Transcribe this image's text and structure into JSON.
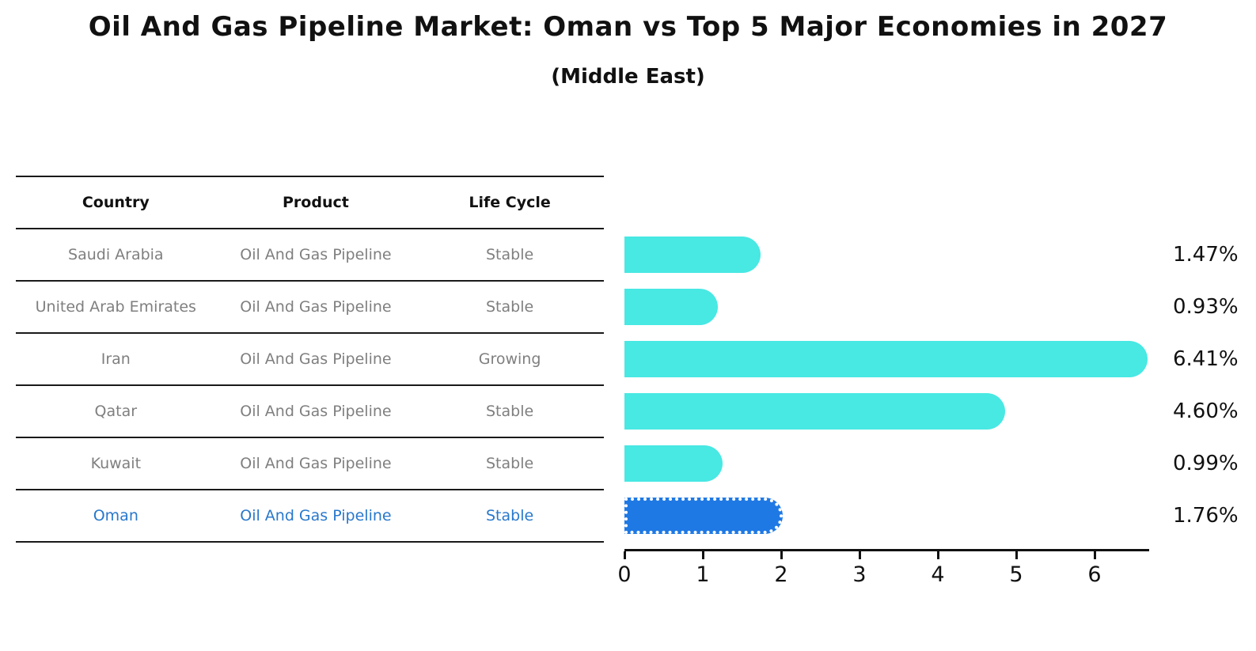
{
  "title": "Oil And Gas Pipeline Market: Oman vs Top 5 Major Economies in 2027",
  "subtitle": "(Middle East)",
  "table": {
    "headers": [
      "Country",
      "Product",
      "Life Cycle"
    ],
    "rows": [
      {
        "country": "Saudi Arabia",
        "product": "Oil And Gas Pipeline",
        "life_cycle": "Stable",
        "highlight": false
      },
      {
        "country": "United Arab Emirates",
        "product": "Oil And Gas Pipeline",
        "life_cycle": "Stable",
        "highlight": false
      },
      {
        "country": "Iran",
        "product": "Oil And Gas Pipeline",
        "life_cycle": "Growing",
        "highlight": false
      },
      {
        "country": "Qatar",
        "product": "Oil And Gas Pipeline",
        "life_cycle": "Stable",
        "highlight": false
      },
      {
        "country": "Kuwait",
        "product": "Oil And Gas Pipeline",
        "life_cycle": "Stable",
        "highlight": false
      },
      {
        "country": "Oman",
        "product": "Oil And Gas Pipeline",
        "life_cycle": "Stable",
        "highlight": true
      }
    ]
  },
  "chart_data": {
    "type": "bar",
    "orientation": "horizontal",
    "categories": [
      "Saudi Arabia",
      "United Arab Emirates",
      "Iran",
      "Qatar",
      "Kuwait",
      "Oman"
    ],
    "values": [
      1.47,
      0.93,
      6.41,
      4.6,
      0.99,
      1.76
    ],
    "labels": [
      "1.47%",
      "0.93%",
      "6.41%",
      "4.60%",
      "0.99%",
      "1.76%"
    ],
    "xticks": [
      0,
      1,
      2,
      3,
      4,
      5,
      6
    ],
    "xlim": [
      0,
      6.7
    ],
    "grid": false,
    "legend": "none",
    "bar_color": "#48e8e3",
    "highlight_color": "#1f79e4",
    "highlight_index": 5
  },
  "colors": {
    "title_text": "#111111",
    "header_text": "#111111",
    "row_text": "#7f7f7f",
    "highlight_text": "#2878cc",
    "table_line": "#1a1a1a",
    "axis": "#111111"
  }
}
